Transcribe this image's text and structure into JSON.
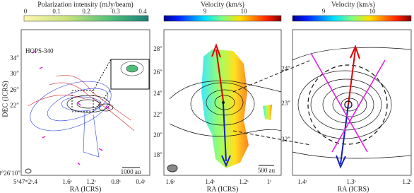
{
  "panels": [
    {
      "colorbar": {
        "label": "Polarization intensity (mJy/beam)",
        "ticks": [
          "0",
          "0.1",
          "0.2",
          "0.3",
          "0.4"
        ]
      },
      "source": "HOPS-340",
      "x_label": "RA (ICRS)",
      "y_label": "DEC (ICRS)",
      "xticks": [
        "5ʰ47ᵐ2ˢ.4",
        "1.6ˢ",
        "1.2ˢ",
        "0.8ˢ",
        "0.4ˢ"
      ],
      "yticks": [
        "34″",
        "30″",
        "26″",
        "22″",
        "0°26′10″"
      ],
      "scale_bar": "1000 au"
    },
    {
      "colorbar": {
        "label": "Velocity (km/s)",
        "ticks": [
          "9",
          "10"
        ]
      },
      "x_label": "RA (ICRS)",
      "xticks": [
        "1.6ˢ",
        "1.4ˢ",
        "1.2ˢ",
        "1ˢ"
      ],
      "yticks": [
        "28″",
        "26″",
        "24″",
        "22″",
        "20″",
        "18″"
      ],
      "scale_bar": "500 au"
    },
    {
      "colorbar": {
        "label": "Velocity (km/s)",
        "ticks": [
          "9",
          "10"
        ]
      },
      "x_label": "RA (ICRS)",
      "xticks": [
        "1.4ˢ",
        "1.3ˢ",
        "1.2ˢ"
      ],
      "yticks": [
        "24″",
        "23″",
        "22″"
      ]
    }
  ]
}
